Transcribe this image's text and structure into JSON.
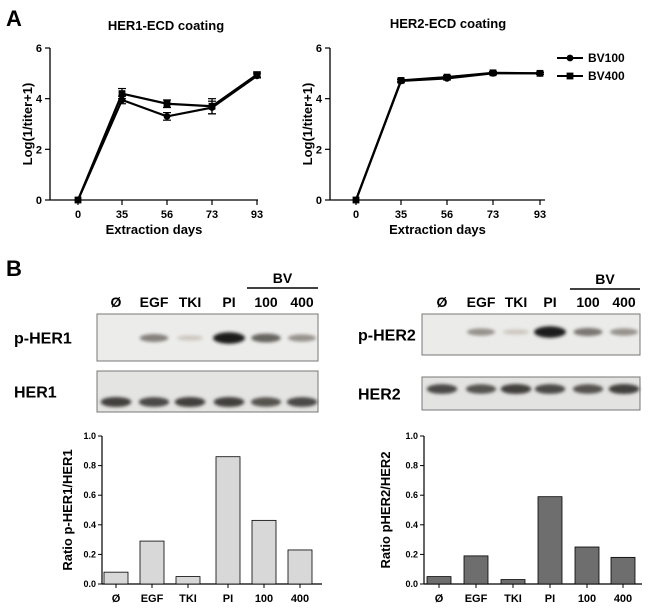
{
  "panel_a_label": "A",
  "panel_b_label": "B",
  "chart_data": [
    {
      "type": "line",
      "title": "HER1-ECD coating",
      "xlabel": "Extraction days",
      "ylabel": "Log(1/titer+1)",
      "categories": [
        "0",
        "35",
        "56",
        "73",
        "93"
      ],
      "ylim": [
        0,
        6
      ],
      "yticks": [
        "0",
        "2",
        "4",
        "6"
      ],
      "series": [
        {
          "name": "BV100",
          "values": [
            0,
            3.95,
            3.3,
            3.65,
            4.9
          ],
          "errors": [
            0,
            0.15,
            0.15,
            0.25,
            0.08
          ],
          "marker": "circle"
        },
        {
          "name": "BV400",
          "values": [
            0,
            4.2,
            3.8,
            3.7,
            4.95
          ],
          "errors": [
            0,
            0.2,
            0.15,
            0.3,
            0.1
          ],
          "marker": "square"
        }
      ]
    },
    {
      "type": "line",
      "title": "HER2-ECD coating",
      "xlabel": "Extraction days",
      "ylabel": "Log(1/titer+1)",
      "categories": [
        "0",
        "35",
        "56",
        "73",
        "93"
      ],
      "ylim": [
        0,
        6
      ],
      "yticks": [
        "0",
        "2",
        "4",
        "6"
      ],
      "legend": [
        "BV100",
        "BV400"
      ],
      "series": [
        {
          "name": "BV100",
          "values": [
            0,
            4.7,
            4.8,
            5.0,
            5.0
          ],
          "errors": [
            0,
            0.05,
            0.06,
            0.05,
            0.04
          ],
          "marker": "circle"
        },
        {
          "name": "BV400",
          "values": [
            0,
            4.72,
            4.85,
            5.02,
            5.0
          ],
          "errors": [
            0,
            0.05,
            0.06,
            0.05,
            0.04
          ],
          "marker": "square"
        }
      ]
    },
    {
      "type": "bar",
      "ylabel": "Ratio p-HER1/HER1",
      "categories": [
        "Ø",
        "EGF",
        "TKI",
        "PI",
        "100",
        "400"
      ],
      "values": [
        0.08,
        0.29,
        0.05,
        0.86,
        0.43,
        0.23
      ],
      "ylim": [
        0,
        1.0
      ],
      "yticks": [
        "0.0",
        "0.2",
        "0.4",
        "0.6",
        "0.8",
        "1.0"
      ],
      "color": "#d8d8d8"
    },
    {
      "type": "bar",
      "ylabel": "Ratio pHER2/HER2",
      "categories": [
        "Ø",
        "EGF",
        "TKI",
        "PI",
        "100",
        "400"
      ],
      "values": [
        0.05,
        0.19,
        0.03,
        0.59,
        0.25,
        0.18
      ],
      "ylim": [
        0,
        1.0
      ],
      "yticks": [
        "0.0",
        "0.2",
        "0.4",
        "0.6",
        "0.8",
        "1.0"
      ],
      "color": "#6e6e6e"
    }
  ],
  "blots": [
    {
      "lanes": [
        "Ø",
        "EGF",
        "TKI",
        "PI",
        "100",
        "400"
      ],
      "group_label": "BV",
      "rows": [
        {
          "label": "p-HER1",
          "intensities": [
            0.0,
            0.45,
            0.05,
            1.0,
            0.6,
            0.35
          ]
        },
        {
          "label": "HER1",
          "intensities": [
            0.8,
            0.75,
            0.8,
            0.8,
            0.7,
            0.75
          ]
        }
      ]
    },
    {
      "lanes": [
        "Ø",
        "EGF",
        "TKI",
        "PI",
        "100",
        "400"
      ],
      "group_label": "BV",
      "rows": [
        {
          "label": "p-HER2",
          "intensities": [
            0.0,
            0.35,
            0.05,
            1.0,
            0.5,
            0.35
          ]
        },
        {
          "label": "HER2",
          "intensities": [
            0.75,
            0.7,
            0.8,
            0.75,
            0.7,
            0.8
          ]
        }
      ]
    }
  ]
}
